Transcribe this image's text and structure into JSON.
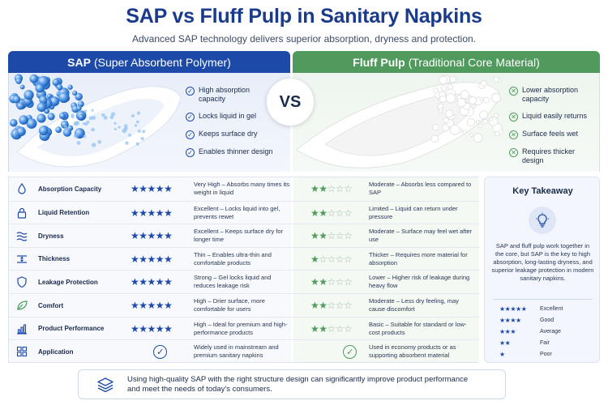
{
  "header": {
    "title": "SAP vs Fluff Pulp in Sanitary Napkins",
    "subtitle": "Advanced SAP technology delivers superior absorption, dryness and protection."
  },
  "sap": {
    "title_bold": "SAP",
    "title_rest": "(Super Absorbent Polymer)",
    "features": [
      "High absorption capacity",
      "Locks liquid in gel",
      "Keeps surface dry",
      "Enables thinner design"
    ]
  },
  "fluff": {
    "title_bold": "Fluff Pulp",
    "title_rest": "(Traditional Core Material)",
    "features": [
      "Lower absorption capacity",
      "Liquid easily returns",
      "Surface feels wet",
      "Requires thicker design"
    ]
  },
  "vs_label": "VS",
  "rows": [
    {
      "icon": "water-drop-icon",
      "label": "Absorption Capacity",
      "sap_stars": 5,
      "sap": "Very High – Absorbs many times its weight in liquid",
      "fluff_stars": 2,
      "fluff": "Moderate – Absorbs less compared to SAP"
    },
    {
      "icon": "lock-icon",
      "label": "Liquid Retention",
      "sap_stars": 5,
      "sap": "Excellent – Locks liquid into gel, prevents rewet",
      "fluff_stars": 2,
      "fluff": "Limited – Liquid can return under pressure"
    },
    {
      "icon": "waves-icon",
      "label": "Dryness",
      "sap_stars": 5,
      "sap": "Excellent – Keeps surface dry for longer time",
      "fluff_stars": 2,
      "fluff": "Moderate – Surface may feel wet after use"
    },
    {
      "icon": "thickness-icon",
      "label": "Thickness",
      "sap_stars": 5,
      "sap": "Thin – Enables ultra-thin and comfortable products",
      "fluff_stars": 1,
      "fluff": "Thicker – Requires more material for absorption"
    },
    {
      "icon": "shield-icon",
      "label": "Leakage Protection",
      "sap_stars": 5,
      "sap": "Strong – Gel locks liquid and reduces leakage risk",
      "fluff_stars": 2,
      "fluff": "Lower – Higher risk of leakage during heavy flow"
    },
    {
      "icon": "leaf-icon",
      "label": "Comfort",
      "sap_stars": 5,
      "sap": "High – Drier surface, more comfortable for users",
      "fluff_stars": 2,
      "fluff": "Moderate – Less dry feeling, may cause discomfort"
    },
    {
      "icon": "bar-chart-icon",
      "label": "Product Performance",
      "sap_stars": 5,
      "sap": "High – Ideal for premium and high-performance products",
      "fluff_stars": 2,
      "fluff": "Basic – Suitable for standard or low-cost products"
    },
    {
      "icon": "grid-icon",
      "label": "Application",
      "sap_stars": null,
      "sap": "Widely used in mainstream and premium sanitary napkins",
      "fluff_stars": null,
      "fluff": "Used in economy products or as supporting absorbent material"
    }
  ],
  "takeaway": {
    "title": "Key Takeaway",
    "text": "SAP and fluff pulp work together in the core, but SAP is the key to high absorption, long-lasting dryness, and superior leakage protection in modern sanitary napkins.",
    "legend": [
      {
        "stars": 5,
        "label": "Excellent"
      },
      {
        "stars": 4,
        "label": "Good"
      },
      {
        "stars": 3,
        "label": "Average"
      },
      {
        "stars": 2,
        "label": "Fair"
      },
      {
        "stars": 1,
        "label": "Poor"
      }
    ]
  },
  "footer": {
    "text_line1": "Using high-quality SAP with the right structure design can significantly improve product performance",
    "text_line2": "and meet the needs of today's consumers."
  },
  "colors": {
    "sap": "#1d4aa8",
    "fluff": "#4f9a5c",
    "title": "#1a3b8c"
  }
}
